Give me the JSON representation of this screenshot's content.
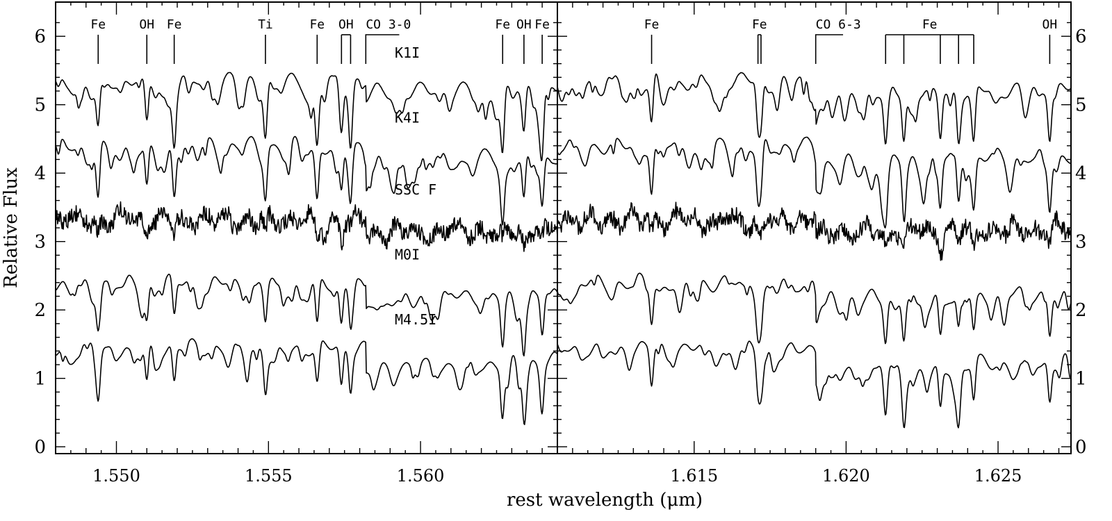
{
  "chart_data": [
    {
      "type": "line",
      "panel": "left",
      "xlim": [
        1.548,
        1.5645
      ],
      "ylim": [
        -0.1,
        6.5
      ],
      "x_ticks": [
        1.55,
        1.555,
        1.56
      ],
      "x_tick_labels": [
        "1.550",
        "1.555",
        "1.560"
      ],
      "y_ticks": [
        0,
        1,
        2,
        3,
        4,
        5,
        6
      ],
      "y_tick_labels": [
        "0",
        "1",
        "2",
        "3",
        "4",
        "5",
        "6"
      ],
      "ylabel": "Relative Flux",
      "features": [
        {
          "label": "Fe",
          "x": [
            1.5494
          ]
        },
        {
          "label": "OH",
          "x": [
            1.551
          ]
        },
        {
          "label": "Fe",
          "x": [
            1.5519
          ]
        },
        {
          "label": "Ti",
          "x": [
            1.5549
          ]
        },
        {
          "label": "Fe",
          "x": [
            1.5566
          ]
        },
        {
          "label": "OH",
          "x": [
            1.5574,
            1.5577
          ]
        },
        {
          "label": "CO 3-0",
          "x": [
            1.5582
          ],
          "bandhead": true,
          "x_end": 1.5593
        },
        {
          "label": "Fe",
          "x": [
            1.5627
          ]
        },
        {
          "label": "OH",
          "x": [
            1.5634
          ]
        },
        {
          "label": "Fe",
          "x": [
            1.564
          ]
        }
      ],
      "lines": [
        1.5494,
        1.551,
        1.5519,
        1.5549,
        1.5566,
        1.5574,
        1.5577,
        1.5627,
        1.5634,
        1.564
      ],
      "co_bandhead": 1.5582
    },
    {
      "type": "line",
      "panel": "right",
      "xlim": [
        1.6105,
        1.6274
      ],
      "ylim": [
        -0.1,
        6.5
      ],
      "x_ticks": [
        1.615,
        1.62,
        1.625
      ],
      "x_tick_labels": [
        "1.615",
        "1.620",
        "1.625"
      ],
      "y_ticks": [
        0,
        1,
        2,
        3,
        4,
        5,
        6
      ],
      "y_tick_labels": [
        "0",
        "1",
        "2",
        "3",
        "4",
        "5",
        "6"
      ],
      "features": [
        {
          "label": "Fe",
          "x": [
            1.6136
          ]
        },
        {
          "label": "Fe",
          "x": [
            1.6171,
            1.6172
          ]
        },
        {
          "label": "CO 6-3",
          "x": [
            1.619
          ],
          "bandhead": true,
          "x_end": 1.6199
        },
        {
          "label": "Fe",
          "x": [
            1.6213,
            1.6219,
            1.6231,
            1.6237,
            1.6242
          ],
          "bracket": true
        },
        {
          "label": "OH",
          "x": [
            1.6267
          ]
        }
      ],
      "lines": [
        1.6136,
        1.6171,
        1.6172,
        1.6213,
        1.6219,
        1.6231,
        1.6237,
        1.6242,
        1.6267
      ],
      "co_bandhead": 1.619
    }
  ],
  "xlabel": "rest wavelength (μm)",
  "series": [
    {
      "name": "K1I",
      "offset": 5.05,
      "depth": 0.55,
      "co_drop": 0.25,
      "noise": 0.03,
      "smooth": 0.95,
      "seed": 11
    },
    {
      "name": "K4I",
      "offset": 4.1,
      "depth": 0.55,
      "co_drop": 0.35,
      "noise": 0.03,
      "smooth": 0.95,
      "seed": 23
    },
    {
      "name": "SSC F",
      "offset": 3.05,
      "depth": 0.18,
      "co_drop": 0.3,
      "noise": 0.12,
      "smooth": 0.45,
      "seed": 37
    },
    {
      "name": "M0I",
      "offset": 2.1,
      "depth": 0.45,
      "co_drop": 0.35,
      "noise": 0.02,
      "smooth": 0.96,
      "seed": 41
    },
    {
      "name": "M4.5I",
      "offset": 1.15,
      "depth": 0.45,
      "co_drop": 0.45,
      "noise": 0.02,
      "smooth": 0.96,
      "seed": 53
    }
  ]
}
